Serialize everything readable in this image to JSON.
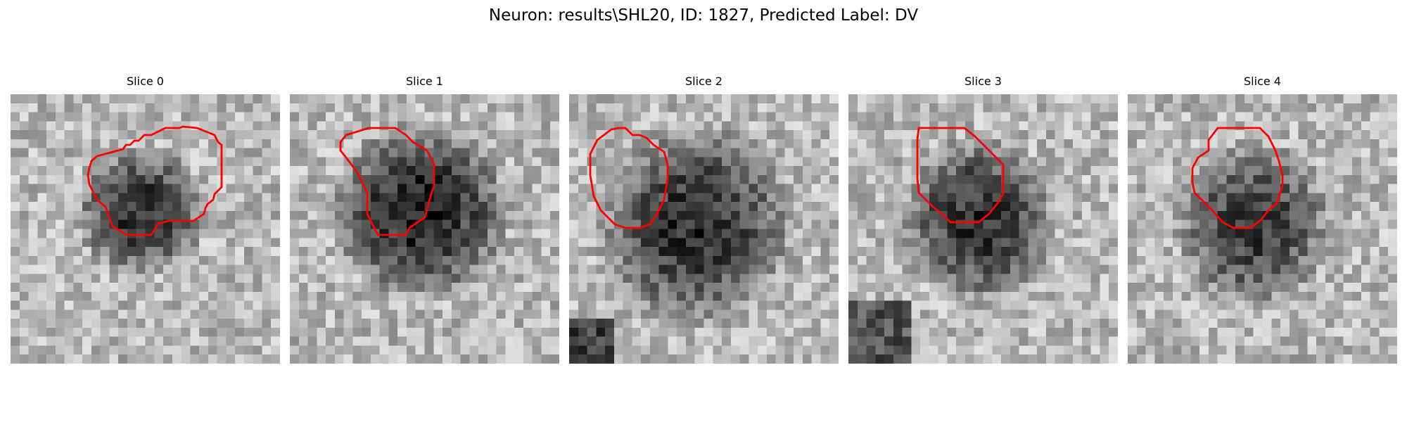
{
  "figure": {
    "title": "Neuron: results\\SHL20, ID: 1827, Predicted Label: DV"
  },
  "colors": {
    "contour": "#ff0000",
    "background": "#ffffff",
    "text": "#000000"
  },
  "panels": [
    {
      "title": "Slice 0",
      "colormap": "grayscale",
      "overlay": "red-contour"
    },
    {
      "title": "Slice 1",
      "colormap": "grayscale",
      "overlay": "red-contour"
    },
    {
      "title": "Slice 2",
      "colormap": "grayscale",
      "overlay": "red-contour"
    },
    {
      "title": "Slice 3",
      "colormap": "grayscale",
      "overlay": "red-contour"
    },
    {
      "title": "Slice 4",
      "colormap": "grayscale",
      "overlay": "red-contour"
    }
  ]
}
